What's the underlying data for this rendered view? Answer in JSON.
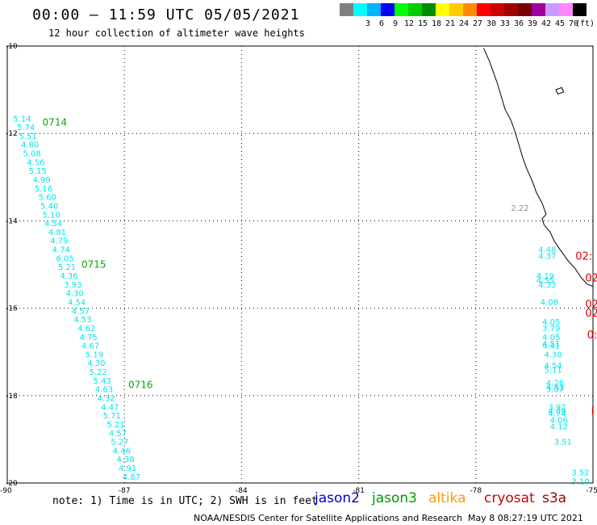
{
  "header": {
    "title": "00:00 – 11:59 UTC 05/05/2021",
    "subtitle": "12 hour collection of altimeter wave heights"
  },
  "colorbar": {
    "unit": "(ft)",
    "bins": [
      {
        "label": "",
        "color": "#808080"
      },
      {
        "label": "3",
        "color": "#00ffff"
      },
      {
        "label": "6",
        "color": "#00b4ff"
      },
      {
        "label": "9",
        "color": "#0000ff"
      },
      {
        "label": "12",
        "color": "#00ff00"
      },
      {
        "label": "15",
        "color": "#00cc00"
      },
      {
        "label": "18",
        "color": "#008c00"
      },
      {
        "label": "21",
        "color": "#ffff00"
      },
      {
        "label": "24",
        "color": "#ffcc00"
      },
      {
        "label": "27",
        "color": "#ff8c00"
      },
      {
        "label": "30",
        "color": "#ff0000"
      },
      {
        "label": "33",
        "color": "#cc0000"
      },
      {
        "label": "36",
        "color": "#a00000"
      },
      {
        "label": "39",
        "color": "#7a0000"
      },
      {
        "label": "42",
        "color": "#a000a0"
      },
      {
        "label": "45",
        "color": "#cc99ff"
      },
      {
        "label": "70",
        "color": "#ff88ff"
      },
      {
        "label": "",
        "color": "#000000"
      }
    ]
  },
  "chart_data": {
    "type": "scatter",
    "xlim": [
      -90,
      -75
    ],
    "ylim": [
      -20,
      -10
    ],
    "x_ticks": [
      "-90",
      "-87",
      "-84",
      "-81",
      "-78",
      "-75"
    ],
    "y_ticks": [
      "-10",
      "-12",
      "-14",
      "-16",
      "-18",
      "-20"
    ],
    "grid": true,
    "colors": {
      "wave_label": "#00e5ee",
      "time_label": "#00aa00",
      "red_label": "#e00000",
      "gray_label": "#909090",
      "coast": "#000000"
    },
    "time_labels": [
      {
        "text": "0714",
        "lon": -89.1,
        "lat": -11.75
      },
      {
        "text": "0715",
        "lon": -88.1,
        "lat": -15.0
      },
      {
        "text": "0716",
        "lon": -86.9,
        "lat": -17.75
      }
    ],
    "red_labels": [
      {
        "text": "02:",
        "lon": -75.45,
        "lat": -14.8
      },
      {
        "text": "02",
        "lon": -75.2,
        "lat": -15.3
      },
      {
        "text": "02",
        "lon": -75.2,
        "lat": -15.9
      },
      {
        "text": "02",
        "lon": -75.2,
        "lat": -16.1
      },
      {
        "text": "0:",
        "lon": -75.15,
        "lat": -16.6
      },
      {
        "text": "I",
        "lon": -75.05,
        "lat": -18.35
      }
    ],
    "gray_labels": [
      {
        "text": "2.22",
        "lon": -77.1,
        "lat": -13.7
      }
    ],
    "track_west": [
      {
        "v": "5.14",
        "lon": -89.85,
        "lat": -11.65
      },
      {
        "v": "5.74",
        "lon": -89.75,
        "lat": -11.85
      },
      {
        "v": "5.51",
        "lon": -89.7,
        "lat": -12.05
      },
      {
        "v": "4.80",
        "lon": -89.65,
        "lat": -12.25
      },
      {
        "v": "5.08",
        "lon": -89.6,
        "lat": -12.45
      },
      {
        "v": "4.56",
        "lon": -89.5,
        "lat": -12.65
      },
      {
        "v": "5.15",
        "lon": -89.45,
        "lat": -12.85
      },
      {
        "v": "4.99",
        "lon": -89.35,
        "lat": -13.05
      },
      {
        "v": "5.16",
        "lon": -89.3,
        "lat": -13.25
      },
      {
        "v": "5.60",
        "lon": -89.2,
        "lat": -13.45
      },
      {
        "v": "5.40",
        "lon": -89.15,
        "lat": -13.65
      },
      {
        "v": "5.10",
        "lon": -89.1,
        "lat": -13.85
      },
      {
        "v": "4.54",
        "lon": -89.05,
        "lat": -14.05
      },
      {
        "v": "4.81",
        "lon": -88.95,
        "lat": -14.25
      },
      {
        "v": "4.79",
        "lon": -88.9,
        "lat": -14.45
      },
      {
        "v": "4.74",
        "lon": -88.85,
        "lat": -14.65
      },
      {
        "v": "6.05",
        "lon": -88.75,
        "lat": -14.85
      },
      {
        "v": "5.21",
        "lon": -88.7,
        "lat": -15.05
      },
      {
        "v": "4.36",
        "lon": -88.65,
        "lat": -15.25
      },
      {
        "v": "3.93",
        "lon": -88.55,
        "lat": -15.45
      },
      {
        "v": "4.30",
        "lon": -88.5,
        "lat": -15.65
      },
      {
        "v": "4.54",
        "lon": -88.45,
        "lat": -15.85
      },
      {
        "v": "4.57",
        "lon": -88.35,
        "lat": -16.05
      },
      {
        "v": "4.53",
        "lon": -88.3,
        "lat": -16.25
      },
      {
        "v": "4.62",
        "lon": -88.2,
        "lat": -16.45
      },
      {
        "v": "4.75",
        "lon": -88.15,
        "lat": -16.65
      },
      {
        "v": "4.67",
        "lon": -88.1,
        "lat": -16.85
      },
      {
        "v": "5.19",
        "lon": -88.0,
        "lat": -17.05
      },
      {
        "v": "4.30",
        "lon": -87.95,
        "lat": -17.25
      },
      {
        "v": "5.22",
        "lon": -87.9,
        "lat": -17.45
      },
      {
        "v": "5.43",
        "lon": -87.8,
        "lat": -17.65
      },
      {
        "v": "4.63",
        "lon": -87.75,
        "lat": -17.85
      },
      {
        "v": "4.32",
        "lon": -87.7,
        "lat": -18.05
      },
      {
        "v": "4.47",
        "lon": -87.6,
        "lat": -18.25
      },
      {
        "v": "5.71",
        "lon": -87.55,
        "lat": -18.45
      },
      {
        "v": "5.21",
        "lon": -87.45,
        "lat": -18.65
      },
      {
        "v": "4.57",
        "lon": -87.4,
        "lat": -18.85
      },
      {
        "v": "5.27",
        "lon": -87.35,
        "lat": -19.05
      },
      {
        "v": "4.46",
        "lon": -87.3,
        "lat": -19.25
      },
      {
        "v": "4.38",
        "lon": -87.2,
        "lat": -19.45
      },
      {
        "v": "4.91",
        "lon": -87.15,
        "lat": -19.65
      },
      {
        "v": "4.87",
        "lon": -87.05,
        "lat": -19.85
      }
    ],
    "track_east": [
      {
        "v": "4.48",
        "lon": -76.4,
        "lat": -14.65
      },
      {
        "v": "4.37",
        "lon": -76.4,
        "lat": -14.8
      },
      {
        "v": "4.19",
        "lon": -76.45,
        "lat": -15.25
      },
      {
        "v": "4.55",
        "lon": -76.45,
        "lat": -15.35
      },
      {
        "v": "4.33",
        "lon": -76.4,
        "lat": -15.45
      },
      {
        "v": "4.08",
        "lon": -76.35,
        "lat": -15.85
      },
      {
        "v": "4.05",
        "lon": -76.3,
        "lat": -16.3
      },
      {
        "v": "3.79",
        "lon": -76.3,
        "lat": -16.45
      },
      {
        "v": "4.05",
        "lon": -76.3,
        "lat": -16.65
      },
      {
        "v": "4.51",
        "lon": -76.3,
        "lat": -16.8
      },
      {
        "v": "4.41",
        "lon": -76.3,
        "lat": -16.85
      },
      {
        "v": "4.30",
        "lon": -76.25,
        "lat": -17.05
      },
      {
        "v": "4.54",
        "lon": -76.25,
        "lat": -17.3
      },
      {
        "v": "5.11",
        "lon": -76.25,
        "lat": -17.4
      },
      {
        "v": "4.26",
        "lon": -76.2,
        "lat": -17.7
      },
      {
        "v": "4.43",
        "lon": -76.2,
        "lat": -17.8
      },
      {
        "v": "5.07",
        "lon": -76.2,
        "lat": -17.85
      },
      {
        "v": "3.92",
        "lon": -76.15,
        "lat": -18.25
      },
      {
        "v": "4.09",
        "lon": -76.15,
        "lat": -18.35
      },
      {
        "v": "4.74",
        "lon": -76.15,
        "lat": -18.4
      },
      {
        "v": "4.06",
        "lon": -76.1,
        "lat": -18.55
      },
      {
        "v": "4.12",
        "lon": -76.1,
        "lat": -18.7
      },
      {
        "v": "3.51",
        "lon": -76.0,
        "lat": -19.05
      },
      {
        "v": "3.52",
        "lon": -75.55,
        "lat": -19.75
      },
      {
        "v": "3.10",
        "lon": -75.55,
        "lat": -19.95
      }
    ],
    "coastline": [
      [
        -77.8,
        -10.05
      ],
      [
        -77.65,
        -10.35
      ],
      [
        -77.55,
        -10.6
      ],
      [
        -77.45,
        -10.85
      ],
      [
        -77.35,
        -11.15
      ],
      [
        -77.25,
        -11.45
      ],
      [
        -77.1,
        -11.7
      ],
      [
        -77.0,
        -11.95
      ],
      [
        -76.9,
        -12.25
      ],
      [
        -76.8,
        -12.55
      ],
      [
        -76.7,
        -12.8
      ],
      [
        -76.55,
        -13.1
      ],
      [
        -76.45,
        -13.35
      ],
      [
        -76.3,
        -13.6
      ],
      [
        -76.2,
        -13.85
      ],
      [
        -76.3,
        -13.95
      ],
      [
        -76.25,
        -14.1
      ],
      [
        -76.1,
        -14.25
      ],
      [
        -76.0,
        -14.45
      ],
      [
        -75.85,
        -14.65
      ],
      [
        -75.65,
        -14.9
      ],
      [
        -75.45,
        -15.1
      ],
      [
        -75.3,
        -15.3
      ],
      [
        -75.15,
        -15.45
      ],
      [
        -75.0,
        -15.5
      ]
    ],
    "island": [
      [
        -75.95,
        -11.0
      ],
      [
        -75.8,
        -10.95
      ],
      [
        -75.75,
        -11.05
      ],
      [
        -75.9,
        -11.1
      ]
    ]
  },
  "footer": {
    "note": "note: 1) Time is in UTC; 2) SWH is in feet",
    "legend": [
      {
        "name": "jason2",
        "color": "#0000cc"
      },
      {
        "name": "jason3",
        "color": "#009900"
      },
      {
        "name": "altika",
        "color": "#ff9900"
      },
      {
        "name": "cryosat",
        "color": "#cc0000"
      },
      {
        "name": "s3a",
        "color": "#990000"
      }
    ],
    "credit": "NOAA/NESDIS Center for Satellite Applications and Research",
    "timestamp": "May  8 08:27:19 UTC 2021"
  }
}
